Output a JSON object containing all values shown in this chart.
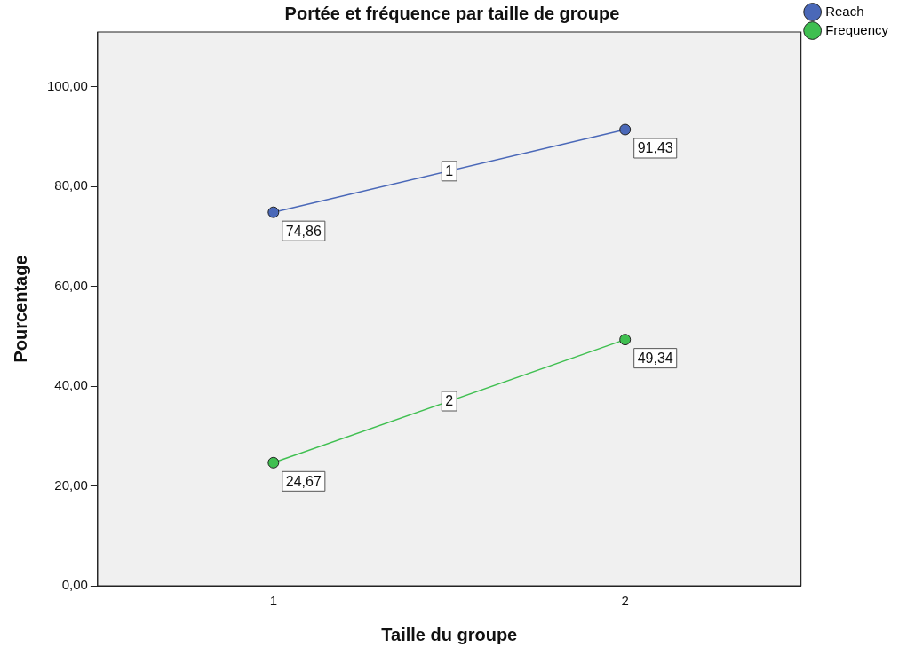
{
  "chart_data": {
    "type": "line",
    "title": "Portée et fréquence par taille de groupe",
    "xlabel": "Taille du groupe",
    "ylabel": "Pourcentage",
    "categories": [
      "1",
      "2"
    ],
    "series": [
      {
        "name": "Reach",
        "color": "#4a68b8",
        "values": [
          74.86,
          91.43
        ],
        "value_labels": [
          "74,86",
          "91,43"
        ]
      },
      {
        "name": "Frequency",
        "color": "#3fbf50",
        "values": [
          24.67,
          49.34
        ],
        "value_labels": [
          "24,67",
          "49,34"
        ]
      }
    ],
    "annotations": [
      {
        "text": "1",
        "y": 83.1
      },
      {
        "text": "2",
        "y": 37.0
      }
    ],
    "ylim": [
      0,
      111
    ],
    "yticks": [
      {
        "value": 0,
        "label": "0,00"
      },
      {
        "value": 20,
        "label": "20,00"
      },
      {
        "value": 40,
        "label": "40,00"
      },
      {
        "value": 60,
        "label": "60,00"
      },
      {
        "value": 80,
        "label": "80,00"
      },
      {
        "value": 100,
        "label": "100,00"
      }
    ],
    "grid": false,
    "legend": "top right",
    "marker": "circle",
    "line_style": "solid"
  }
}
